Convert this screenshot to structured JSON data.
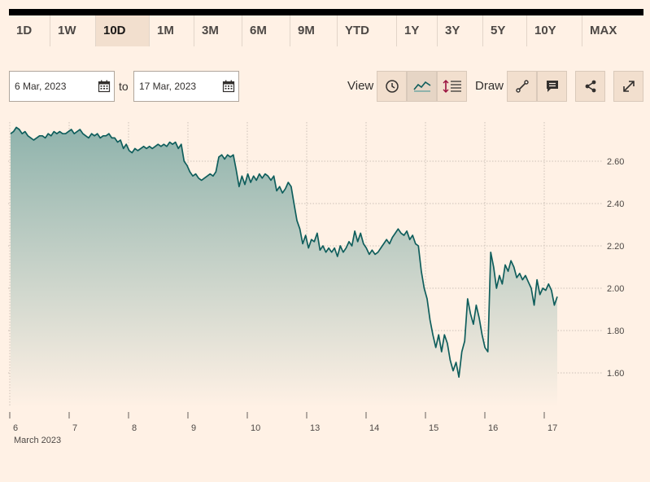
{
  "ranges": [
    {
      "label": "1D",
      "active": false
    },
    {
      "label": "1W",
      "active": false
    },
    {
      "label": "10D",
      "active": true
    },
    {
      "label": "1M",
      "active": false
    },
    {
      "label": "3M",
      "active": false
    },
    {
      "label": "6M",
      "active": false
    },
    {
      "label": "9M",
      "active": false
    },
    {
      "label": "YTD",
      "active": false
    },
    {
      "label": "1Y",
      "active": false
    },
    {
      "label": "3Y",
      "active": false
    },
    {
      "label": "5Y",
      "active": false
    },
    {
      "label": "10Y",
      "active": false
    },
    {
      "label": "MAX",
      "active": false
    }
  ],
  "date_range": {
    "from": "6 Mar, 2023",
    "to_label": "to",
    "to": "17 Mar, 2023"
  },
  "toolbar": {
    "view_label": "View",
    "draw_label": "Draw"
  },
  "colors": {
    "line": "#0f5e5c",
    "fill_top": "#8fb3ac",
    "fill_bottom": "#fff1e5",
    "grid": "#ccc1b7"
  },
  "chart_data": {
    "type": "area",
    "title": "",
    "xlabel": "",
    "ylabel": "",
    "x_tick_labels": [
      "6",
      "7",
      "8",
      "9",
      "10",
      "13",
      "14",
      "15",
      "16",
      "17"
    ],
    "x_sublabel": "March 2023",
    "y_ticks": [
      1.6,
      1.8,
      2.0,
      2.2,
      2.4,
      2.6
    ],
    "y_tick_labels": [
      "1.60",
      "1.80",
      "2.00",
      "2.20",
      "2.40",
      "2.60"
    ],
    "ylim": [
      1.45,
      2.8
    ],
    "grid": true,
    "series": [
      {
        "values": [
          2.73,
          2.74,
          2.76,
          2.75,
          2.73,
          2.74,
          2.72,
          2.71,
          2.7,
          2.71,
          2.72,
          2.72,
          2.71,
          2.73,
          2.72,
          2.74,
          2.73,
          2.74,
          2.73,
          2.73,
          2.74,
          2.75,
          2.73,
          2.74,
          2.75,
          2.73,
          2.72,
          2.71,
          2.73,
          2.72,
          2.73,
          2.71,
          2.72,
          2.72,
          2.73,
          2.71,
          2.71,
          2.69,
          2.7,
          2.66,
          2.68,
          2.65,
          2.64,
          2.66,
          2.65,
          2.66,
          2.67,
          2.66,
          2.67,
          2.66,
          2.67,
          2.68,
          2.67,
          2.68,
          2.67,
          2.69,
          2.68,
          2.69,
          2.66,
          2.68,
          2.6,
          2.58,
          2.55,
          2.53,
          2.54,
          2.52,
          2.51,
          2.52,
          2.53,
          2.54,
          2.53,
          2.55,
          2.62,
          2.63,
          2.61,
          2.63,
          2.62,
          2.63,
          2.56,
          2.48,
          2.53,
          2.49,
          2.54,
          2.5,
          2.53,
          2.51,
          2.54,
          2.52,
          2.54,
          2.53,
          2.51,
          2.53,
          2.46,
          2.48,
          2.45,
          2.47,
          2.5,
          2.48,
          2.4,
          2.32,
          2.28,
          2.21,
          2.25,
          2.19,
          2.23,
          2.22,
          2.26,
          2.18,
          2.2,
          2.17,
          2.19,
          2.17,
          2.19,
          2.15,
          2.2,
          2.17,
          2.19,
          2.22,
          2.2,
          2.27,
          2.22,
          2.26,
          2.21,
          2.19,
          2.16,
          2.18,
          2.16,
          2.17,
          2.19,
          2.21,
          2.23,
          2.21,
          2.24,
          2.26,
          2.28,
          2.26,
          2.25,
          2.27,
          2.23,
          2.25,
          2.21,
          2.2,
          2.08,
          2.0,
          1.95,
          1.85,
          1.78,
          1.72,
          1.78,
          1.7,
          1.78,
          1.74,
          1.66,
          1.61,
          1.65,
          1.58,
          1.7,
          1.75,
          1.95,
          1.88,
          1.83,
          1.92,
          1.86,
          1.78,
          1.72,
          1.7,
          2.17,
          2.1,
          2.0,
          2.06,
          2.02,
          2.11,
          2.08,
          2.13,
          2.1,
          2.05,
          2.07,
          2.04,
          2.06,
          2.03,
          2.0,
          1.92,
          2.04,
          1.97,
          2.0,
          1.99,
          2.02,
          1.99,
          1.92,
          1.96
        ]
      }
    ]
  }
}
